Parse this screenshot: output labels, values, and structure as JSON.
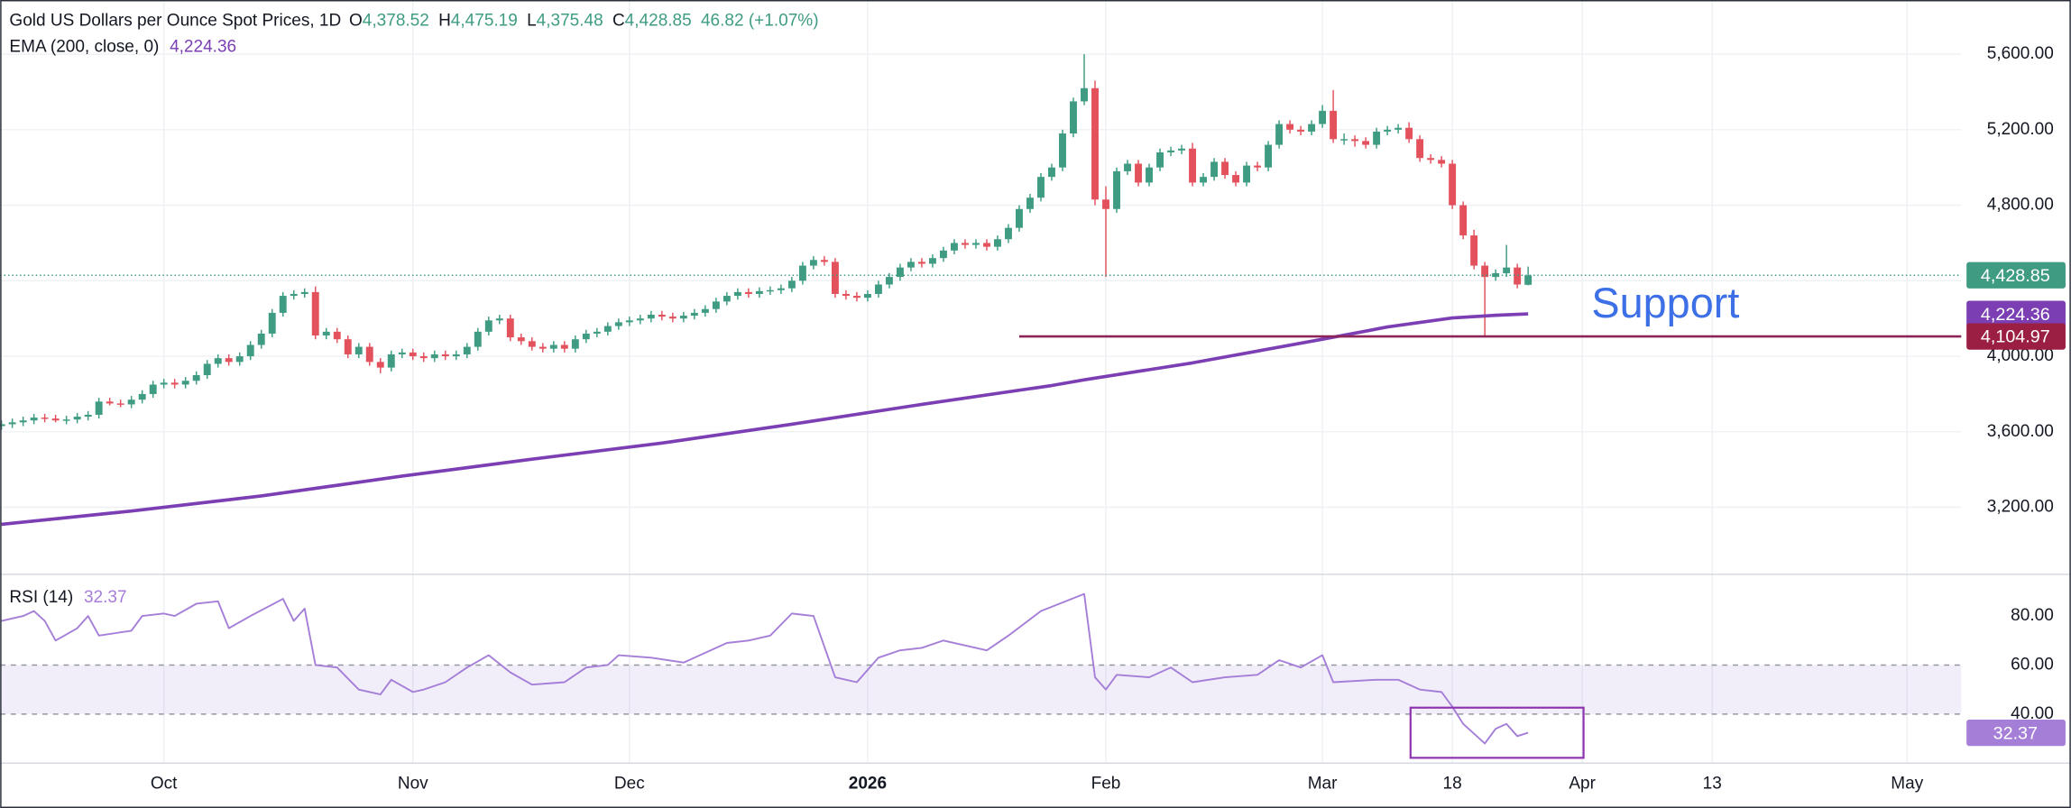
{
  "chart_data": {
    "type": "candlestick",
    "title": "Gold US Dollars per Ounce Spot Prices, 1D",
    "ohlc": [
      {
        "key": "O",
        "value": "4,378.52"
      },
      {
        "key": "H",
        "value": "4,475.19"
      },
      {
        "key": "L",
        "value": "4,375.48"
      },
      {
        "key": "C",
        "value": "4,428.85"
      }
    ],
    "change": "46.82 (+1.07%)",
    "up_color": "#3f9c83",
    "down_color": "#e3525c",
    "open": [
      3630,
      3640,
      3650,
      3660,
      3675,
      3670,
      3660,
      3665,
      3680,
      3690,
      3760,
      3750,
      3745,
      3770,
      3800,
      3850,
      3860,
      3850,
      3870,
      3900,
      3960,
      3990,
      3970,
      4000,
      4060,
      4120,
      4230,
      4320,
      4330,
      4340,
      4110,
      4130,
      4090,
      4010,
      4050,
      3970,
      3940,
      4010,
      4020,
      4000,
      3990,
      4010,
      4000,
      4010,
      4050,
      4130,
      4190,
      4200,
      4100,
      4080,
      4050,
      4040,
      4060,
      4040,
      4090,
      4120,
      4130,
      4160,
      4180,
      4190,
      4200,
      4220,
      4210,
      4200,
      4215,
      4230,
      4250,
      4290,
      4320,
      4340,
      4330,
      4345,
      4350,
      4360,
      4400,
      4480,
      4510,
      4500,
      4330,
      4320,
      4310,
      4330,
      4380,
      4420,
      4470,
      4500,
      4490,
      4520,
      4560,
      4600,
      4590,
      4600,
      4580,
      4620,
      4680,
      4780,
      4840,
      4950,
      5000,
      5180,
      5350,
      5420,
      4830,
      4780,
      4980,
      5020,
      4920,
      5000,
      5080,
      5090,
      5100,
      4920,
      4950,
      5030,
      4960,
      4920,
      5010,
      5000,
      5120,
      5230,
      5200,
      5190,
      5230,
      5300,
      5150,
      5150,
      5140,
      5120,
      5190,
      5200,
      5210,
      5150,
      5050,
      5040,
      5020,
      4800,
      4640,
      4480,
      4420,
      4440,
      4470,
      4378.52
    ],
    "high": [
      3660,
      3670,
      3680,
      3695,
      3695,
      3690,
      3685,
      3700,
      3710,
      3780,
      3780,
      3770,
      3790,
      3820,
      3870,
      3880,
      3880,
      3890,
      3920,
      3980,
      4010,
      4010,
      4020,
      4080,
      4140,
      4250,
      4340,
      4350,
      4360,
      4370,
      4150,
      4150,
      4110,
      4070,
      4070,
      3990,
      4030,
      4040,
      4040,
      4020,
      4030,
      4030,
      4030,
      4070,
      4150,
      4210,
      4220,
      4220,
      4120,
      4100,
      4070,
      4080,
      4080,
      4110,
      4140,
      4150,
      4180,
      4200,
      4210,
      4220,
      4240,
      4240,
      4230,
      4235,
      4250,
      4270,
      4310,
      4340,
      4360,
      4360,
      4365,
      4370,
      4380,
      4420,
      4500,
      4530,
      4530,
      4520,
      4350,
      4340,
      4350,
      4400,
      4440,
      4490,
      4520,
      4520,
      4540,
      4580,
      4620,
      4620,
      4620,
      4620,
      4640,
      4700,
      4800,
      4860,
      4970,
      5020,
      5200,
      5370,
      5600,
      5460,
      4900,
      5000,
      5040,
      5040,
      5020,
      5100,
      5110,
      5120,
      5130,
      4970,
      5050,
      5050,
      4980,
      5030,
      5030,
      5140,
      5250,
      5250,
      5220,
      5250,
      5330,
      5410,
      5180,
      5170,
      5160,
      5210,
      5220,
      5230,
      5240,
      5170,
      5070,
      5060,
      5040,
      4820,
      4670,
      4500,
      4460,
      4590,
      4490,
      4475.19
    ],
    "low": [
      3610,
      3620,
      3630,
      3640,
      3650,
      3650,
      3640,
      3645,
      3660,
      3670,
      3740,
      3730,
      3725,
      3750,
      3780,
      3830,
      3830,
      3830,
      3850,
      3880,
      3940,
      3950,
      3950,
      3980,
      4040,
      4100,
      4210,
      4300,
      4310,
      4090,
      4090,
      4070,
      3990,
      3990,
      3950,
      3910,
      3920,
      3990,
      3980,
      3970,
      3970,
      3980,
      3980,
      3990,
      4030,
      4110,
      4170,
      4080,
      4060,
      4030,
      4020,
      4020,
      4020,
      4020,
      4070,
      4100,
      4110,
      4140,
      4160,
      4170,
      4180,
      4190,
      4180,
      4180,
      4195,
      4210,
      4230,
      4270,
      4300,
      4310,
      4310,
      4325,
      4330,
      4340,
      4380,
      4460,
      4480,
      4310,
      4300,
      4290,
      4290,
      4310,
      4360,
      4400,
      4450,
      4470,
      4470,
      4500,
      4540,
      4570,
      4570,
      4560,
      4560,
      4600,
      4660,
      4760,
      4820,
      4930,
      4980,
      5160,
      5330,
      4800,
      4420,
      4760,
      4960,
      4900,
      4900,
      4980,
      5060,
      5070,
      4900,
      4900,
      4930,
      4940,
      4900,
      4900,
      4980,
      4980,
      5100,
      5180,
      5170,
      5170,
      5210,
      5130,
      5120,
      5110,
      5100,
      5100,
      5170,
      5180,
      5130,
      5030,
      5020,
      5000,
      4780,
      4620,
      4460,
      4110,
      4400,
      4420,
      4360,
      4375.48
    ],
    "close": [
      3640,
      3650,
      3660,
      3675,
      3670,
      3660,
      3665,
      3680,
      3690,
      3760,
      3750,
      3745,
      3770,
      3800,
      3850,
      3860,
      3850,
      3870,
      3900,
      3960,
      3990,
      3970,
      4000,
      4060,
      4120,
      4230,
      4320,
      4330,
      4340,
      4110,
      4130,
      4090,
      4010,
      4050,
      3970,
      3940,
      4010,
      4020,
      4000,
      3990,
      4010,
      4000,
      4010,
      4050,
      4130,
      4190,
      4200,
      4100,
      4080,
      4050,
      4040,
      4060,
      4040,
      4090,
      4120,
      4130,
      4160,
      4180,
      4190,
      4200,
      4220,
      4210,
      4200,
      4215,
      4230,
      4250,
      4290,
      4320,
      4340,
      4330,
      4345,
      4350,
      4360,
      4400,
      4480,
      4510,
      4500,
      4330,
      4320,
      4310,
      4330,
      4380,
      4420,
      4470,
      4500,
      4490,
      4520,
      4560,
      4600,
      4590,
      4600,
      4580,
      4620,
      4680,
      4780,
      4840,
      4950,
      5000,
      5180,
      5350,
      5420,
      4830,
      4780,
      4980,
      5020,
      4920,
      5000,
      5080,
      5090,
      5100,
      4920,
      4950,
      5030,
      4960,
      4920,
      5010,
      5000,
      5120,
      5230,
      5200,
      5190,
      5230,
      5300,
      5150,
      5150,
      5140,
      5120,
      5190,
      5200,
      5210,
      5150,
      5050,
      5040,
      5020,
      4800,
      4640,
      4480,
      4420,
      4440,
      4470,
      4380,
      4428.85
    ],
    "last_price_label": "4,428.85",
    "xlim": [
      -0.12,
      181
    ],
    "xticks": [
      {
        "value": 15,
        "label": "Oct"
      },
      {
        "value": 38,
        "label": "Nov"
      },
      {
        "value": 58,
        "label": "Dec"
      },
      {
        "value": 80,
        "label": "2026"
      },
      {
        "value": 102,
        "label": "Feb"
      },
      {
        "value": 122,
        "label": "Mar"
      },
      {
        "value": 134,
        "label": "18"
      },
      {
        "value": 146,
        "label": "Apr"
      },
      {
        "value": 158,
        "label": "13"
      },
      {
        "value": 176,
        "label": "May"
      }
    ],
    "ylim": [
      2845,
      5887
    ],
    "yticks": [
      {
        "value": 3200,
        "label": "3,200.00"
      },
      {
        "value": 3600,
        "label": "3,600.00"
      },
      {
        "value": 4000,
        "label": "4,000.00"
      },
      {
        "value": 4400,
        "label": "4,400.00"
      },
      {
        "value": 4800,
        "label": "4,800.00"
      },
      {
        "value": 5200,
        "label": "5,200.00"
      },
      {
        "value": 5600,
        "label": "5,600.00"
      }
    ],
    "grid": true,
    "overlays": [
      {
        "name": "EMA (200, close, 0)",
        "color": "#7b3fb3",
        "value_label": "4,224.36",
        "x": [
          0,
          12,
          24,
          37,
          49,
          61,
          73,
          85,
          97,
          100,
          110,
          122,
          128,
          134,
          138,
          141
        ],
        "values": [
          3110,
          3180,
          3260,
          3365,
          3455,
          3540,
          3640,
          3745,
          3845,
          3875,
          3965,
          4090,
          4155,
          4203,
          4217,
          4224.36
        ]
      }
    ],
    "support": {
      "text": "Support",
      "value": 4104.97,
      "label": "4,104.97",
      "x_start": 94,
      "color": "#8c2458",
      "text_color": "#3d6fe6",
      "tag_color": "#9b1f42"
    },
    "indicator": {
      "name": "RSI (14)",
      "value_label": "32.37",
      "color": "#a57ed8",
      "band": [
        40,
        60
      ],
      "ylim": [
        20,
        97
      ],
      "yticks": [
        {
          "value": 40,
          "label": "40.00"
        },
        {
          "value": 60,
          "label": "60.00"
        },
        {
          "value": 80,
          "label": "80.00"
        }
      ],
      "x": [
        0,
        2,
        3,
        4,
        5,
        7,
        8,
        9,
        12,
        13,
        15,
        16,
        18,
        20,
        21,
        23,
        26,
        27,
        28,
        29,
        31,
        33,
        35,
        36,
        38,
        39,
        41,
        43,
        45,
        47,
        49,
        52,
        54,
        56,
        57,
        60,
        63,
        67,
        69,
        71,
        73,
        75,
        77,
        79,
        81,
        83,
        85,
        87,
        91,
        93,
        96,
        100,
        101,
        102,
        103,
        106,
        108,
        110,
        113,
        116,
        118,
        120,
        122,
        123,
        127,
        129,
        131,
        133,
        134,
        135,
        137,
        138,
        139,
        140,
        141
      ],
      "values": [
        78,
        80,
        82,
        78,
        70,
        75,
        80,
        72,
        74,
        80,
        81,
        80,
        85,
        86,
        75,
        80,
        87,
        78,
        83,
        60,
        59,
        50,
        48,
        54,
        49,
        50,
        53,
        59,
        64,
        57,
        52,
        53,
        59,
        60,
        64,
        63,
        61,
        69,
        70,
        72,
        81,
        80,
        55,
        53,
        63,
        66,
        67,
        70,
        66,
        72,
        82,
        89,
        55,
        50,
        56,
        55,
        59,
        53,
        55,
        56,
        62,
        59,
        64,
        53,
        54,
        54,
        50,
        49,
        43,
        36,
        28,
        34,
        36,
        31,
        32.37
      ]
    }
  }
}
